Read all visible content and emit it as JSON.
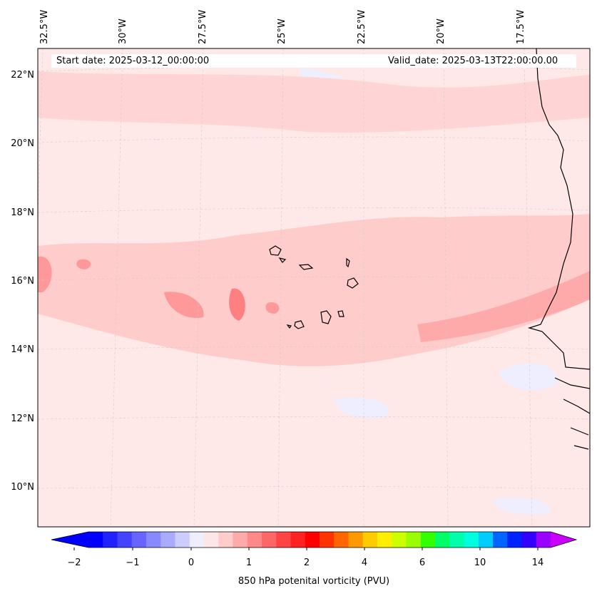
{
  "map": {
    "start_date": "Start date: 2025-03-12_00:00:00",
    "valid_date": "Valid_date: 2025-03-13T22:00:00.00",
    "lon_labels": [
      "32.5°W",
      "30°W",
      "27.5°W",
      "25°W",
      "22.5°W",
      "20°W",
      "17.5°W"
    ],
    "lat_labels": [
      "22°N",
      "20°N",
      "18°N",
      "16°N",
      "14°N",
      "12°N",
      "10°N"
    ],
    "colorbar": {
      "label": "850 hPa potenital vorticity (PVU)",
      "ticks": [
        "−2",
        "−1",
        "0",
        "1",
        "2",
        "4",
        "6",
        "10",
        "14"
      ],
      "colors": [
        "#0000ff",
        "#2222ff",
        "#4444ff",
        "#6666ff",
        "#8888ff",
        "#aaaaff",
        "#ccccff",
        "#eeeeff",
        "#ffe6e6",
        "#ffcccc",
        "#ffaaaa",
        "#ff8888",
        "#ff6666",
        "#ff4444",
        "#ff2222",
        "#ff0000",
        "#ff3300",
        "#ff6600",
        "#ff9900",
        "#ffcc00",
        "#ffee00",
        "#ccff00",
        "#99ff00",
        "#33ff00",
        "#00ff66",
        "#00ffaa",
        "#00ffdd",
        "#00ccff",
        "#0066ff",
        "#0022ff",
        "#3300ff",
        "#9900ff"
      ],
      "extend_low_color": "#0000ff",
      "extend_high_color": "#cc00ff"
    }
  }
}
